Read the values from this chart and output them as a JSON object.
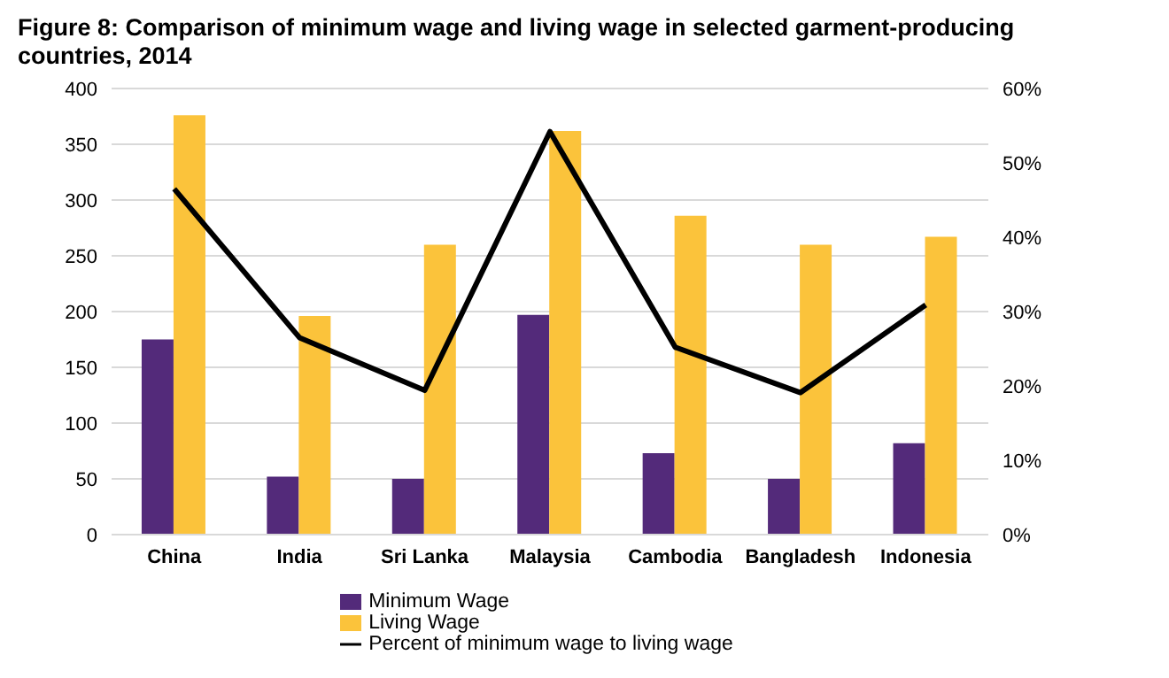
{
  "chart_data": {
    "type": "bar",
    "title": "Figure 8: Comparison of minimum wage and living wage in selected garment-producing countries, 2014",
    "categories": [
      "China",
      "India",
      "Sri Lanka",
      "Malaysia",
      "Cambodia",
      "Bangladesh",
      "Indonesia"
    ],
    "series": [
      {
        "name": "Minimum Wage",
        "color": "#532a7a",
        "values": [
          175,
          52,
          50,
          197,
          73,
          50,
          82
        ]
      },
      {
        "name": "Living Wage",
        "color": "#fbc33b",
        "values": [
          376,
          196,
          260,
          362,
          286,
          260,
          267
        ]
      },
      {
        "name": "Percent of minimum wage to living wage",
        "type": "line",
        "axis": "y2",
        "color": "#000000",
        "values": [
          46.5,
          26.5,
          19.4,
          54.2,
          25.2,
          19.1,
          30.9
        ]
      }
    ],
    "ylim": [
      0,
      400
    ],
    "yticks": [
      0,
      50,
      100,
      150,
      200,
      250,
      300,
      350,
      400
    ],
    "y2lim": [
      0,
      60
    ],
    "y2ticks": [
      {
        "value": 0,
        "label": "0%"
      },
      {
        "value": 10,
        "label": "10%"
      },
      {
        "value": 20,
        "label": "20%"
      },
      {
        "value": 30,
        "label": "30%"
      },
      {
        "value": 40,
        "label": "40%"
      },
      {
        "value": 50,
        "label": "50%"
      },
      {
        "value": 60,
        "label": "60%"
      }
    ],
    "grid": "y",
    "legend": "bottom",
    "marker": "none"
  }
}
